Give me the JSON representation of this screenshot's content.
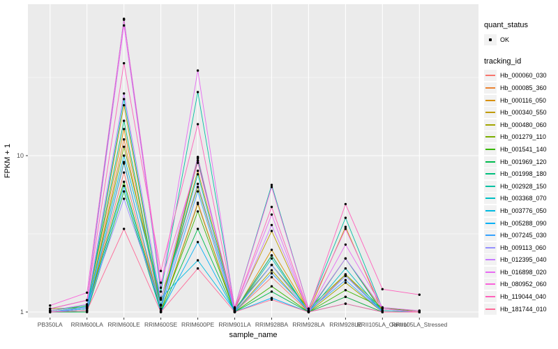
{
  "figure": {
    "panel_bg": "#EBEBEB",
    "grid_color": "#FFFFFF",
    "tick_label_color": "#4D4D4D",
    "tick_mark_color": "#333333",
    "legend_key_bg": "#F2F2F2",
    "point_color": "#000000"
  },
  "axes": {
    "x_title": "sample_name",
    "y_title": "FPKM + 1",
    "y_tick_labels": [
      "1",
      "10"
    ],
    "y_tick_values": [
      1,
      10
    ]
  },
  "legend": {
    "quant_title": "quant_status",
    "quant_items": [
      {
        "label": "OK",
        "marker": "point-icon"
      }
    ],
    "tracking_title": "tracking_id"
  },
  "chart_data": {
    "type": "line",
    "x_type": "categorical",
    "y_scale": "log10",
    "title": "",
    "xlabel": "sample_name",
    "ylabel": "FPKM + 1",
    "ylim": [
      0.92,
      93
    ],
    "y_major_ticks": [
      1,
      10
    ],
    "y_minor_ticks": [
      3.162,
      31.62
    ],
    "grid": true,
    "legend_position": "right",
    "marker": {
      "shape": "point",
      "color": "#000000",
      "legend_label": "OK"
    },
    "categories": [
      "PB350LA",
      "RRIM600LA",
      "RRIM600LE",
      "RRIM600SE",
      "RRIM600PE",
      "RRIM901LA",
      "RRIM928BA",
      "RRIM928LA",
      "RRIM928LE",
      "RRII105LA_Control",
      "RRII105LA_Stressed"
    ],
    "series": [
      {
        "name": "Hb_000060_030",
        "color": "#F8766D",
        "values": [
          1.0,
          1.02,
          7.8,
          1.0,
          5.0,
          1.0,
          1.67,
          1.0,
          1.25,
          1.0,
          1.0
        ]
      },
      {
        "name": "Hb_000085_360",
        "color": "#EA8331",
        "values": [
          1.0,
          1.05,
          12.7,
          1.05,
          9.8,
          1.0,
          2.3,
          1.0,
          1.74,
          1.0,
          1.0
        ]
      },
      {
        "name": "Hb_000116_050",
        "color": "#D89000",
        "values": [
          1.02,
          1.1,
          14.8,
          1.1,
          9.6,
          1.0,
          2.5,
          1.02,
          2.2,
          1.02,
          1.0
        ]
      },
      {
        "name": "Hb_000340_550",
        "color": "#C09B00",
        "values": [
          1.0,
          1.08,
          21.0,
          1.11,
          8.0,
          1.05,
          3.3,
          1.0,
          3.5,
          1.0,
          1.0
        ]
      },
      {
        "name": "Hb_000480_060",
        "color": "#A3A500",
        "values": [
          1.0,
          1.0,
          9.1,
          1.0,
          4.9,
          1.0,
          1.85,
          1.0,
          1.54,
          1.0,
          1.0
        ]
      },
      {
        "name": "Hb_001279_110",
        "color": "#7CAE00",
        "values": [
          1.05,
          1.07,
          11.4,
          1.23,
          6.3,
          1.05,
          2.0,
          1.05,
          1.74,
          1.05,
          1.02
        ]
      },
      {
        "name": "Hb_001541_140",
        "color": "#39B600",
        "values": [
          1.0,
          1.05,
          6.8,
          1.02,
          4.4,
          1.0,
          1.46,
          1.0,
          1.38,
          1.07,
          1.0
        ]
      },
      {
        "name": "Hb_001969_120",
        "color": "#00BB4E",
        "values": [
          1.0,
          1.0,
          5.9,
          1.0,
          3.4,
          1.0,
          1.35,
          1.0,
          1.25,
          1.0,
          1.0
        ]
      },
      {
        "name": "Hb_001998_180",
        "color": "#00BF7D",
        "values": [
          1.02,
          1.1,
          16.7,
          1.05,
          9.3,
          1.02,
          2.3,
          1.0,
          2.2,
          1.0,
          1.0
        ]
      },
      {
        "name": "Hb_002928_150",
        "color": "#00C1A3",
        "values": [
          1.05,
          1.19,
          75.0,
          1.35,
          25.5,
          1.07,
          6.5,
          1.05,
          4.0,
          1.05,
          1.0
        ]
      },
      {
        "name": "Hb_003368_070",
        "color": "#00BFC4",
        "values": [
          1.0,
          1.05,
          23.0,
          1.11,
          7.6,
          1.0,
          2.2,
          1.0,
          1.9,
          1.0,
          1.0
        ]
      },
      {
        "name": "Hb_003776_050",
        "color": "#00BAE0",
        "values": [
          1.0,
          1.08,
          10.0,
          1.23,
          2.14,
          1.02,
          2.0,
          1.0,
          1.7,
          1.02,
          1.0
        ]
      },
      {
        "name": "Hb_005288_090",
        "color": "#00B0F6",
        "values": [
          1.0,
          1.02,
          6.4,
          1.0,
          2.8,
          1.0,
          1.23,
          1.0,
          1.13,
          1.0,
          1.0
        ]
      },
      {
        "name": "Hb_007245_030",
        "color": "#35A2FF",
        "values": [
          1.0,
          1.05,
          8.9,
          1.05,
          5.9,
          1.0,
          1.77,
          1.02,
          1.6,
          1.0,
          1.0
        ]
      },
      {
        "name": "Hb_009113_060",
        "color": "#9590FF",
        "values": [
          1.0,
          1.07,
          5.3,
          1.1,
          6.6,
          1.02,
          2.0,
          1.0,
          1.7,
          1.0,
          1.0
        ]
      },
      {
        "name": "Hb_012395_040",
        "color": "#C77CFF",
        "values": [
          1.02,
          1.12,
          25.0,
          1.2,
          9.8,
          1.02,
          3.6,
          1.02,
          2.2,
          1.05,
          1.0
        ]
      },
      {
        "name": "Hb_016898_020",
        "color": "#E76BF3",
        "values": [
          1.05,
          1.19,
          68.0,
          1.43,
          35.0,
          1.05,
          4.2,
          1.0,
          2.7,
          1.07,
          1.02
        ]
      },
      {
        "name": "Hb_080952_060",
        "color": "#FA62DB",
        "values": [
          1.1,
          1.33,
          74.0,
          1.54,
          9.0,
          1.07,
          6.3,
          1.05,
          3.4,
          1.05,
          1.0
        ]
      },
      {
        "name": "Hb_119044_040",
        "color": "#FF62BC",
        "values": [
          1.05,
          1.19,
          39.0,
          1.83,
          15.9,
          1.05,
          4.7,
          1.02,
          4.9,
          1.4,
          1.29
        ]
      },
      {
        "name": "Hb_181744_010",
        "color": "#FF6A98",
        "values": [
          1.0,
          1.02,
          3.4,
          1.0,
          1.9,
          1.0,
          1.2,
          1.0,
          1.13,
          1.0,
          1.0
        ]
      }
    ]
  }
}
